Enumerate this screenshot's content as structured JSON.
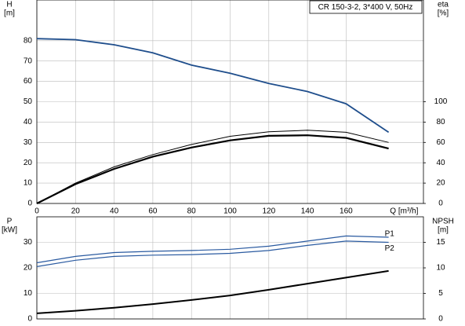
{
  "chart_data": [
    {
      "type": "line",
      "title": "CR 150-3-2, 3*400 V, 50Hz",
      "ylabel": [
        "H",
        "[m]"
      ],
      "y2label": [
        "eta",
        "[%]"
      ],
      "xlabel": "Q [m³/h]",
      "x": [
        0,
        20,
        40,
        60,
        80,
        100,
        120,
        140,
        160,
        182
      ],
      "xlim": [
        0,
        200
      ],
      "xticks": [
        0,
        20,
        40,
        60,
        80,
        100,
        120,
        140,
        160
      ],
      "ylim": [
        0,
        100
      ],
      "yticks": [
        0,
        10,
        20,
        30,
        40,
        50,
        60,
        70,
        80
      ],
      "y2lim": [
        0,
        200
      ],
      "y2ticks": [
        0,
        20,
        40,
        60,
        80,
        100
      ],
      "grid": true,
      "xtick_labels": true,
      "series": [
        {
          "color": "#1f4e8c",
          "values": [
            81,
            80.5,
            78,
            74,
            68,
            64,
            59,
            55,
            49,
            35
          ]
        },
        {
          "color": "#000000",
          "axis": "y2",
          "values": [
            0,
            20,
            36,
            48,
            58,
            66,
            70.5,
            72,
            70,
            60
          ]
        },
        {
          "color": "#000000",
          "axis": "y2",
          "values": [
            0,
            19,
            34,
            46,
            55,
            62,
            66.5,
            67,
            64.5,
            54
          ]
        }
      ]
    },
    {
      "type": "line",
      "ylabel": [
        "P",
        "[kW]"
      ],
      "y2label": [
        "NPSH",
        "[m]"
      ],
      "x": [
        0,
        20,
        40,
        60,
        80,
        100,
        120,
        140,
        160,
        182
      ],
      "xlim": [
        0,
        200
      ],
      "xticks": [
        0,
        20,
        40,
        60,
        80,
        100,
        120,
        140,
        160
      ],
      "ylim": [
        0,
        40
      ],
      "yticks": [
        0,
        10,
        20,
        30
      ],
      "y2lim": [
        0,
        20
      ],
      "y2ticks": [
        0,
        5,
        10,
        15
      ],
      "grid": true,
      "xtick_labels": false,
      "series": [
        {
          "name": "P1",
          "color": "#2a5aa0",
          "values": [
            22,
            24.5,
            26,
            26.5,
            26.8,
            27.3,
            28.5,
            30.5,
            32.5,
            32
          ]
        },
        {
          "name": "P2",
          "color": "#2a5aa0",
          "values": [
            20.5,
            23,
            24.5,
            25,
            25.2,
            25.7,
            26.8,
            28.8,
            30.5,
            30
          ]
        },
        {
          "color": "#000000",
          "axis": "y2",
          "values": [
            1.1,
            1.6,
            2.2,
            2.9,
            3.7,
            4.6,
            5.7,
            6.9,
            8.1,
            9.4
          ]
        }
      ]
    }
  ]
}
